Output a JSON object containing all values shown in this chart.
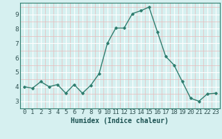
{
  "x": [
    0,
    1,
    2,
    3,
    4,
    5,
    6,
    7,
    8,
    9,
    10,
    11,
    12,
    13,
    14,
    15,
    16,
    17,
    18,
    19,
    20,
    21,
    22,
    23
  ],
  "y": [
    4.0,
    3.9,
    4.35,
    4.0,
    4.15,
    3.55,
    4.15,
    3.55,
    4.1,
    4.9,
    7.0,
    8.05,
    8.05,
    9.05,
    9.25,
    9.5,
    7.8,
    6.1,
    5.5,
    4.35,
    3.2,
    3.0,
    3.5,
    3.55
  ],
  "line_color": "#2e7d6e",
  "marker": "D",
  "marker_size": 1.8,
  "bg_color": "#d6f0f0",
  "grid_color_major": "#ffffff",
  "grid_color_minor": "#e8b8b8",
  "xlabel": "Humidex (Indice chaleur)",
  "xlim": [
    -0.5,
    23.5
  ],
  "ylim": [
    2.5,
    9.8
  ],
  "yticks": [
    3,
    4,
    5,
    6,
    7,
    8,
    9
  ],
  "xticks": [
    0,
    1,
    2,
    3,
    4,
    5,
    6,
    7,
    8,
    9,
    10,
    11,
    12,
    13,
    14,
    15,
    16,
    17,
    18,
    19,
    20,
    21,
    22,
    23
  ],
  "xlabel_fontsize": 7,
  "tick_fontsize": 6.5,
  "linewidth": 1.0
}
